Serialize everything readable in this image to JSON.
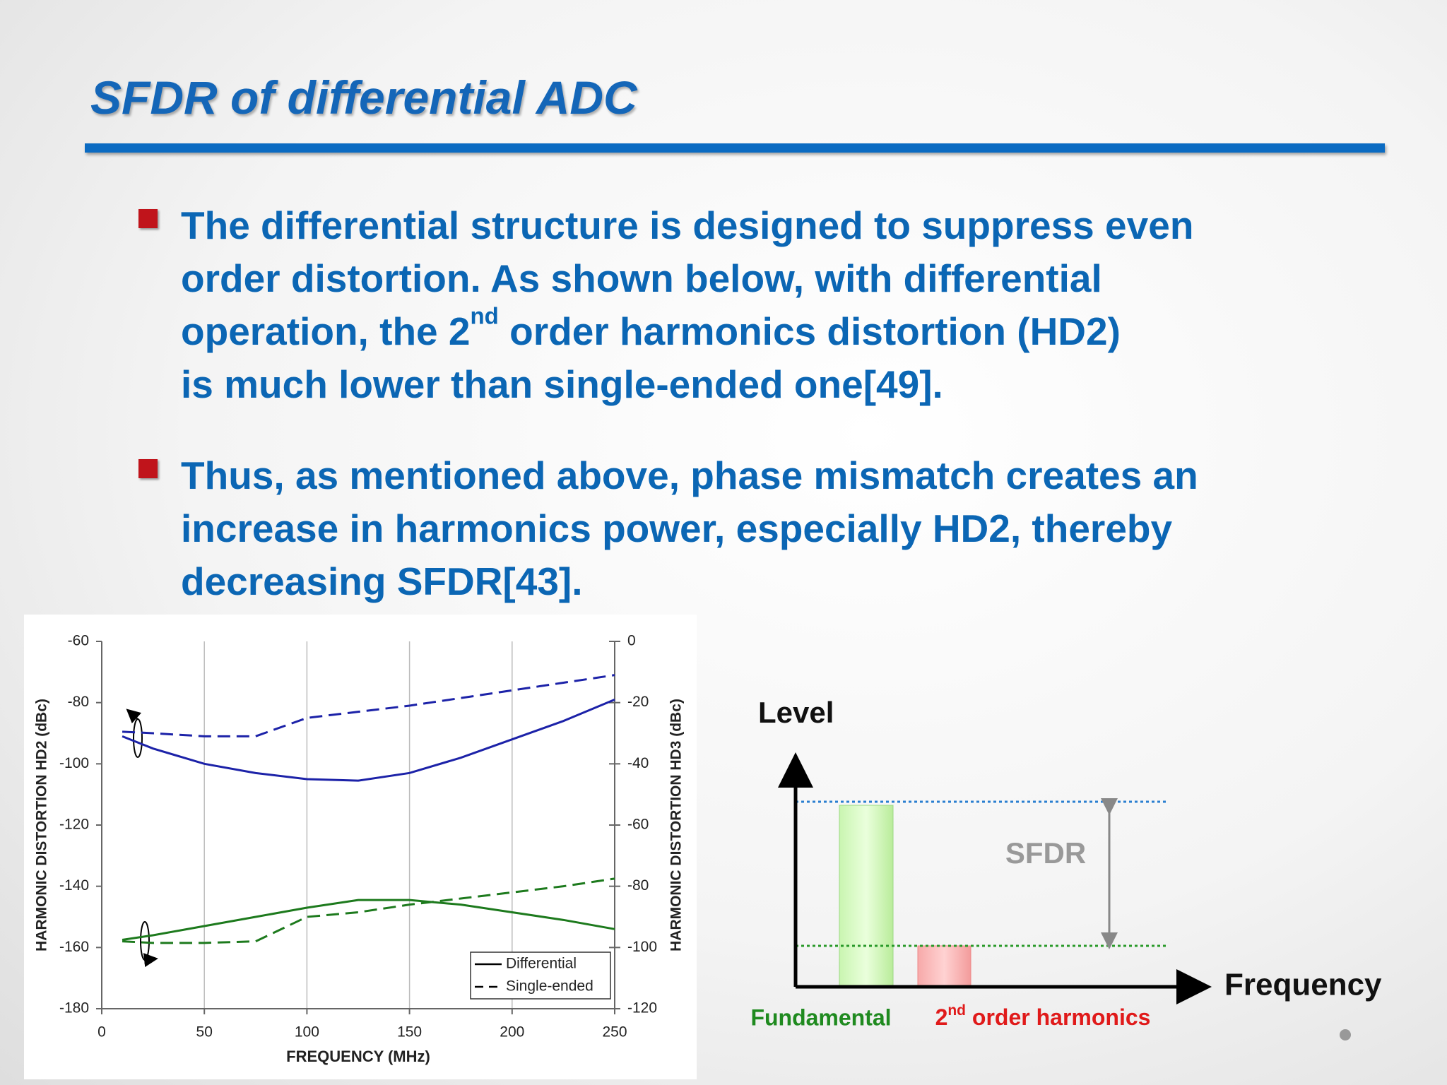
{
  "title": "SFDR of differential ADC",
  "bullets": [
    {
      "lines": [
        [
          {
            "text": "The differential structure is designed to suppress even"
          }
        ],
        [
          {
            "text": "order distortion. As shown below, with differential"
          }
        ],
        [
          {
            "text": "operation, the 2"
          },
          {
            "text": "nd",
            "sup": true
          },
          {
            "text": " order harmonics distortion (HD2)"
          }
        ],
        [
          {
            "text": "is much lower than single-ended one[49]."
          }
        ]
      ]
    },
    {
      "lines": [
        [
          {
            "text": "Thus, as mentioned above, phase mismatch creates an"
          }
        ],
        [
          {
            "text": "increase in harmonics power, especially HD2, thereby"
          }
        ],
        [
          {
            "text": "decreasing SFDR[43]."
          }
        ]
      ]
    }
  ],
  "chart_data": {
    "type": "line",
    "x_label": "FREQUENCY (MHz)",
    "y_label": "HARMONIC DISTORTION HD2 (dBc)",
    "y2_label": "HARMONIC DISTORTION HD3 (dBc)",
    "x": [
      10,
      25,
      50,
      75,
      100,
      125,
      150,
      175,
      200,
      225,
      250
    ],
    "xlim": [
      0,
      250
    ],
    "xticks": [
      0,
      50,
      100,
      150,
      200,
      250
    ],
    "ylim": [
      -180,
      -60
    ],
    "yticks": [
      -180,
      -160,
      -140,
      -120,
      -100,
      -80,
      -60
    ],
    "y2lim": [
      -120,
      0
    ],
    "y2ticks": [
      -120,
      -100,
      -80,
      -60,
      -40,
      -20,
      0
    ],
    "xgrid": true,
    "legend_corner": "bottom-right",
    "legend": [
      {
        "name": "Differential",
        "dash": "solid"
      },
      {
        "name": "Single-ended",
        "dash": "dashed"
      }
    ],
    "series": [
      {
        "color": "#1c22a8",
        "dash": "solid",
        "axis": "y",
        "values": [
          -91,
          -95,
          -100,
          -103,
          -105,
          -105.5,
          -103,
          -98,
          -92,
          -86,
          -79
        ]
      },
      {
        "color": "#1c22a8",
        "dash": "dashed",
        "axis": "y",
        "values": [
          -89.5,
          -90,
          -91,
          -91,
          -85,
          -83,
          -81,
          -78.5,
          -76,
          -73.5,
          -71
        ]
      },
      {
        "color": "#1d7a1d",
        "dash": "solid",
        "axis": "y2",
        "values": [
          -97.5,
          -96,
          -93,
          -90,
          -87,
          -84.5,
          -84.5,
          -86,
          -88.5,
          -91,
          -94
        ]
      },
      {
        "color": "#1d7a1d",
        "dash": "dashed",
        "axis": "y2",
        "values": [
          -98,
          -98.5,
          -98.5,
          -98,
          -90,
          -88.5,
          -86,
          -84,
          -82,
          -80,
          -77.5
        ]
      }
    ]
  },
  "diagram": {
    "y_axis": "Level",
    "x_axis": "Frequency",
    "span": "SFDR",
    "fundamental": "Fundamental",
    "harmonic": [
      {
        "text": "2"
      },
      {
        "text": "nd",
        "sup": true
      },
      {
        "text": " order harmonics"
      }
    ]
  }
}
